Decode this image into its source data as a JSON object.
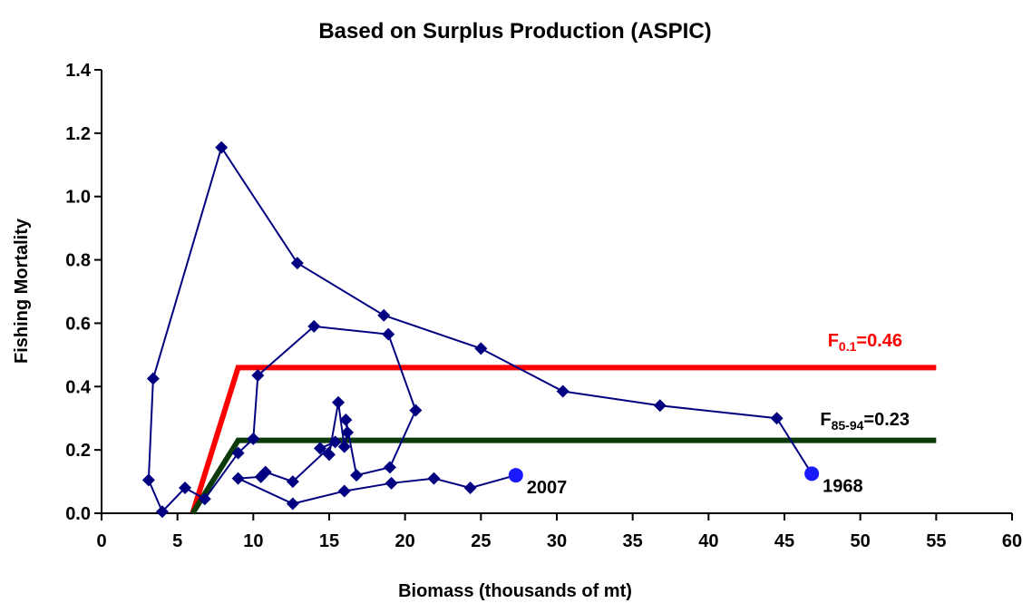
{
  "chart_data": {
    "type": "scatter",
    "title": "Based on Surplus Production (ASPIC)",
    "xlabel": "Biomass (thousands of mt)",
    "ylabel": "Fishing Mortality",
    "xlim": [
      0,
      60
    ],
    "ylim": [
      0,
      1.4
    ],
    "xticks": [
      0,
      5,
      10,
      15,
      20,
      25,
      30,
      35,
      40,
      45,
      50,
      55,
      60
    ],
    "yticks": [
      {
        "value": 0,
        "label": "0.0"
      },
      0.2,
      0.4,
      0.6,
      0.8,
      {
        "value": 1,
        "label": "1.0"
      },
      1.2,
      1.4
    ],
    "series": [
      {
        "color": "#000080",
        "highlight_color": "#1a1aff",
        "x": [
          46.8,
          44.5,
          36.8,
          30.4,
          25.0,
          18.6,
          12.9,
          7.9,
          3.4,
          3.1,
          4.0,
          5.5,
          6.8,
          9.0,
          10.0,
          10.3,
          14.0,
          18.9,
          20.7,
          19.0,
          16.8,
          16.1,
          16.2,
          16.0,
          15.6,
          15.0,
          14.4,
          15.4,
          12.6,
          10.8,
          10.5,
          9.0,
          12.6,
          16.0,
          19.1,
          21.9,
          24.3,
          27.3
        ],
        "values": [
          0.125,
          0.3,
          0.34,
          0.385,
          0.52,
          0.625,
          0.79,
          1.155,
          0.425,
          0.105,
          0.005,
          0.08,
          0.045,
          0.19,
          0.235,
          0.435,
          0.59,
          0.565,
          0.325,
          0.145,
          0.12,
          0.295,
          0.255,
          0.21,
          0.35,
          0.185,
          0.205,
          0.225,
          0.1,
          0.13,
          0.115,
          0.11,
          0.03,
          0.07,
          0.095,
          0.11,
          0.08,
          0.12
        ],
        "point_labels": [
          "1968",
          null,
          null,
          null,
          null,
          null,
          null,
          null,
          null,
          null,
          null,
          null,
          null,
          null,
          null,
          null,
          null,
          null,
          null,
          null,
          null,
          null,
          null,
          null,
          null,
          null,
          null,
          null,
          null,
          null,
          null,
          null,
          null,
          null,
          null,
          null,
          null,
          "2007"
        ]
      }
    ],
    "reference_lines": [
      {
        "color": "#ff0000",
        "label_color": "#ff0000",
        "x": [
          6,
          9,
          55
        ],
        "values": [
          0,
          0.46,
          0.46
        ],
        "label_parts": [
          "F",
          "0.1",
          "=0.46"
        ]
      },
      {
        "color": "#0b3a0b",
        "label_color": "#000000",
        "x": [
          6,
          9,
          55
        ],
        "values": [
          0,
          0.23,
          0.23
        ],
        "label_parts": [
          "F",
          "85-94",
          "=0.23"
        ]
      }
    ]
  }
}
